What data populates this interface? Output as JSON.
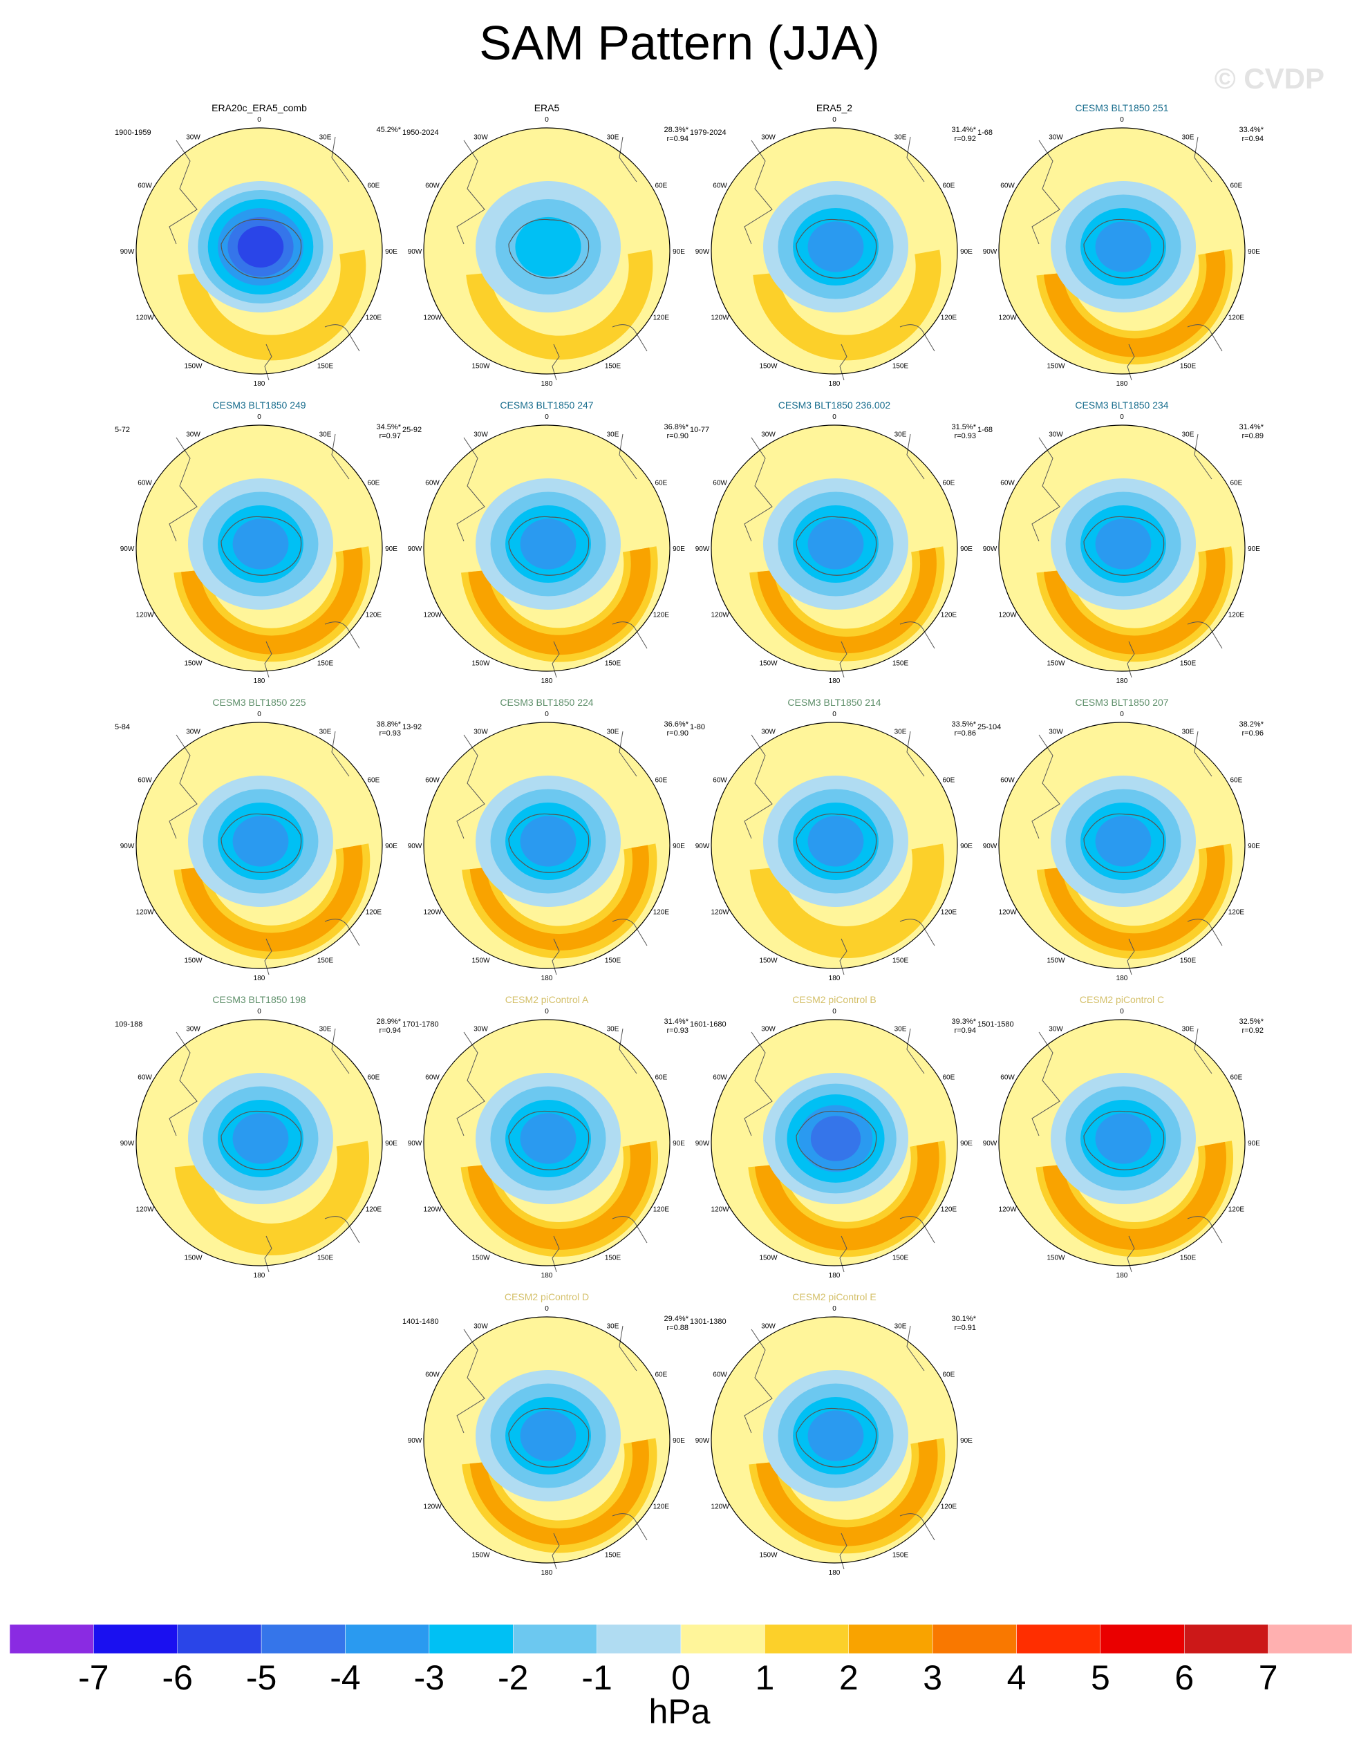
{
  "title": "SAM Pattern (JJA)",
  "watermark": "© CVDP",
  "colors": {
    "ref_title": "#000000",
    "cesm3_title_a": "#1a6e8e",
    "cesm3_title_b": "#5e8f6a",
    "cesm2_title": "#d4c06a"
  },
  "lon_labels": [
    "0",
    "30E",
    "60E",
    "90E",
    "120E",
    "150E",
    "180",
    "150W",
    "120W",
    "90W",
    "60W",
    "30W"
  ],
  "panels": [
    {
      "title": "ERA20c_ERA5_comb",
      "years": "1900-1959",
      "pct": "45.2%*",
      "r": "",
      "title_color": "ref_title",
      "center_min": -6.5,
      "ring_amp": 1.2
    },
    {
      "title": "ERA5",
      "years": "1950-2024",
      "pct": "28.3%*",
      "r": "r=0.94",
      "title_color": "ref_title",
      "center_min": -3.5,
      "ring_amp": 1.1
    },
    {
      "title": "ERA5_2",
      "years": "1979-2024",
      "pct": "31.4%*",
      "r": "r=0.92",
      "title_color": "ref_title",
      "center_min": -4.5,
      "ring_amp": 1.2
    },
    {
      "title": "CESM3 BLT1850 251",
      "years": "1-68",
      "pct": "33.4%*",
      "r": "r=0.94",
      "title_color": "cesm3_title_a",
      "center_min": -4.5,
      "ring_amp": 2.2
    },
    {
      "title": "CESM3 BLT1850 249",
      "years": "5-72",
      "pct": "34.5%*",
      "r": "r=0.97",
      "title_color": "cesm3_title_a",
      "center_min": -4.5,
      "ring_amp": 2.2
    },
    {
      "title": "CESM3 BLT1850 247",
      "years": "25-92",
      "pct": "36.8%*",
      "r": "r=0.90",
      "title_color": "cesm3_title_a",
      "center_min": -4.2,
      "ring_amp": 2.3
    },
    {
      "title": "CESM3 BLT1850 236.002",
      "years": "10-77",
      "pct": "31.5%*",
      "r": "r=0.93",
      "title_color": "cesm3_title_a",
      "center_min": -4.2,
      "ring_amp": 2.0
    },
    {
      "title": "CESM3 BLT1850 234",
      "years": "1-68",
      "pct": "31.4%*",
      "r": "r=0.89",
      "title_color": "cesm3_title_a",
      "center_min": -4.5,
      "ring_amp": 2.2
    },
    {
      "title": "CESM3 BLT1850 225",
      "years": "5-84",
      "pct": "38.8%*",
      "r": "r=0.93",
      "title_color": "cesm3_title_b",
      "center_min": -4.6,
      "ring_amp": 2.2
    },
    {
      "title": "CESM3 BLT1850 224",
      "years": "13-92",
      "pct": "36.6%*",
      "r": "r=0.90",
      "title_color": "cesm3_title_b",
      "center_min": -4.2,
      "ring_amp": 2.0
    },
    {
      "title": "CESM3 BLT1850 214",
      "years": "1-80",
      "pct": "33.5%*",
      "r": "r=0.86",
      "title_color": "cesm3_title_b",
      "center_min": -4.5,
      "ring_amp": 1.9
    },
    {
      "title": "CESM3 BLT1850 207",
      "years": "25-104",
      "pct": "38.2%*",
      "r": "r=0.96",
      "title_color": "cesm3_title_b",
      "center_min": -4.7,
      "ring_amp": 2.1
    },
    {
      "title": "CESM3 BLT1850 198",
      "years": "109-188",
      "pct": "28.9%*",
      "r": "r=0.94",
      "title_color": "cesm3_title_b",
      "center_min": -4.3,
      "ring_amp": 1.9
    },
    {
      "title": "CESM2 piControl A",
      "years": "1701-1780",
      "pct": "31.4%*",
      "r": "r=0.93",
      "title_color": "cesm2_title",
      "center_min": -4.5,
      "ring_amp": 2.4
    },
    {
      "title": "CESM2 piControl B",
      "years": "1601-1680",
      "pct": "39.3%*",
      "r": "r=0.94",
      "title_color": "cesm2_title",
      "center_min": -5.0,
      "ring_amp": 2.5
    },
    {
      "title": "CESM2 piControl C",
      "years": "1501-1580",
      "pct": "32.5%*",
      "r": "r=0.92",
      "title_color": "cesm2_title",
      "center_min": -4.5,
      "ring_amp": 2.4
    },
    {
      "title": "CESM2 piControl D",
      "years": "1401-1480",
      "pct": "29.4%*",
      "r": "r=0.88",
      "title_color": "cesm2_title",
      "center_min": -4.2,
      "ring_amp": 2.0
    },
    {
      "title": "CESM2 piControl E",
      "years": "1301-1380",
      "pct": "30.1%*",
      "r": "r=0.91",
      "title_color": "cesm2_title",
      "center_min": -4.3,
      "ring_amp": 2.2
    }
  ],
  "colorbar": {
    "colors": [
      "#8a2be2",
      "#1a10f0",
      "#2a45e8",
      "#3575ea",
      "#2a9af0",
      "#00c0f4",
      "#6cc8f0",
      "#b0dcf2",
      "#fff59a",
      "#fcd02a",
      "#f9a300",
      "#f97800",
      "#ff2e00",
      "#ea0000",
      "#cc1818",
      "#ffb0b0"
    ],
    "tick_labels": [
      "-7",
      "-6",
      "-5",
      "-4",
      "-3",
      "-2",
      "-1",
      "0",
      "1",
      "2",
      "3",
      "4",
      "5",
      "6",
      "7"
    ],
    "units": "hPa"
  }
}
